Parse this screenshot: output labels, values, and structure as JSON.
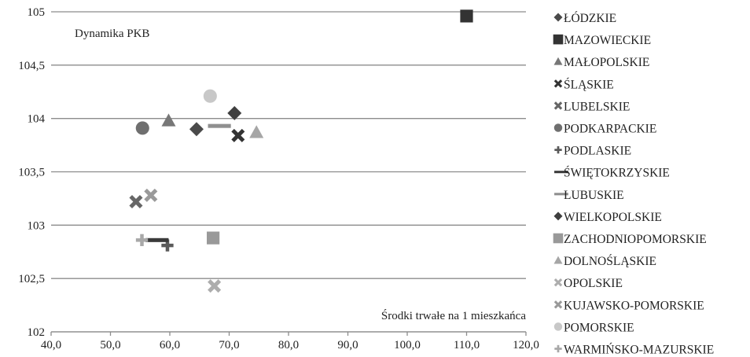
{
  "chart_data": {
    "type": "scatter",
    "annotations": [
      "Dynamika PKB",
      "Środki trwałe na 1 mieszkańca"
    ],
    "xlim": [
      40,
      120
    ],
    "ylim": [
      102,
      105
    ],
    "x_ticks": [
      {
        "value": 40,
        "label": "40,0"
      },
      {
        "value": 50,
        "label": "50,0"
      },
      {
        "value": 60,
        "label": "60,0"
      },
      {
        "value": 70,
        "label": "70,0"
      },
      {
        "value": 80,
        "label": "80,0"
      },
      {
        "value": 90,
        "label": "90,0"
      },
      {
        "value": 100,
        "label": "100,0"
      },
      {
        "value": 110,
        "label": "110,0"
      },
      {
        "value": 120,
        "label": "120,0"
      }
    ],
    "y_ticks": [
      {
        "value": 102,
        "label": "102"
      },
      {
        "value": 102.5,
        "label": "102,5"
      },
      {
        "value": 103,
        "label": "103"
      },
      {
        "value": 103.5,
        "label": "103,5"
      },
      {
        "value": 104,
        "label": "104"
      },
      {
        "value": 104.5,
        "label": "104,5"
      },
      {
        "value": 105,
        "label": "105"
      }
    ],
    "grid": "horizontal",
    "legend_position": "right",
    "series": [
      {
        "name": "ŁÓDZKIE",
        "marker": "diamond",
        "color": "#4a4a4a",
        "x": 64.5,
        "y": 103.9
      },
      {
        "name": "MAZOWIECKIE",
        "marker": "square",
        "color": "#333333",
        "x": 110.0,
        "y": 104.96
      },
      {
        "name": "MAŁOPOLSKIE",
        "marker": "triangle",
        "color": "#777777",
        "x": 59.8,
        "y": 103.98
      },
      {
        "name": "ŚLĄSKIE",
        "marker": "x",
        "color": "#333333",
        "x": 71.5,
        "y": 103.84
      },
      {
        "name": "LUBELSKIE",
        "marker": "x",
        "color": "#666666",
        "x": 54.3,
        "y": 103.22
      },
      {
        "name": "PODKARPACKIE",
        "marker": "circle",
        "color": "#6f6f6f",
        "x": 55.4,
        "y": 103.91
      },
      {
        "name": "PODLASKIE",
        "marker": "plus",
        "color": "#5a5a5a",
        "x": 59.6,
        "y": 102.81
      },
      {
        "name": "ŚWIĘTOKRZYSKIE",
        "marker": "dash",
        "color": "#3a3a3a",
        "x": 57.0,
        "y": 102.86
      },
      {
        "name": "LUBUSKIE",
        "marker": "dash",
        "color": "#8f8f8f",
        "x": 67.5,
        "y": 103.93
      },
      {
        "name": "WIELKOPOLSKIE",
        "marker": "diamond",
        "color": "#3f3f3f",
        "x": 70.9,
        "y": 104.05
      },
      {
        "name": "ZACHODNIOPOMORSKIE",
        "marker": "square",
        "color": "#999999",
        "x": 67.3,
        "y": 102.88
      },
      {
        "name": "DOLNOŚLĄSKIE",
        "marker": "triangle",
        "color": "#a6a6a6",
        "x": 74.6,
        "y": 103.87
      },
      {
        "name": "OPOLSKIE",
        "marker": "x",
        "color": "#adadad",
        "x": 67.5,
        "y": 102.43
      },
      {
        "name": "KUJAWSKO-POMORSKIE",
        "marker": "x",
        "color": "#9a9a9a",
        "x": 56.8,
        "y": 103.28
      },
      {
        "name": "POMORSKIE",
        "marker": "circle",
        "color": "#c8c8c8",
        "x": 66.8,
        "y": 104.21
      },
      {
        "name": "WARMIŃSKO-MAZURSKIE",
        "marker": "plus",
        "color": "#a8a8a8",
        "x": 55.3,
        "y": 102.86
      }
    ]
  }
}
